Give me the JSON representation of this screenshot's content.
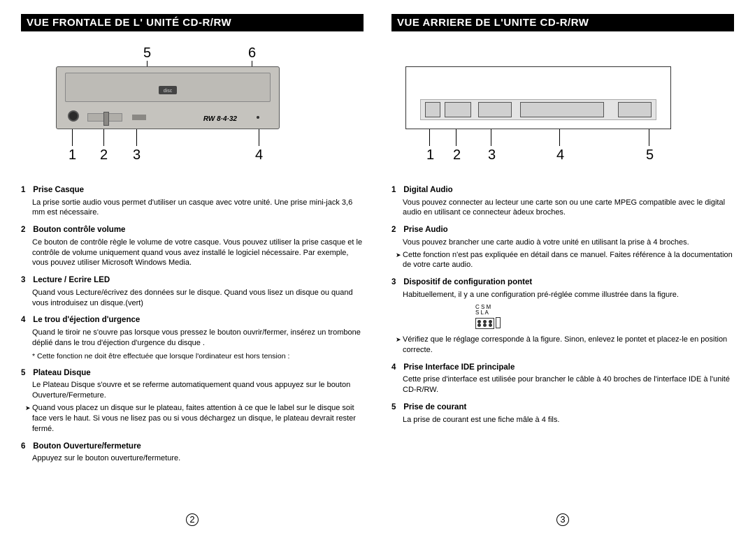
{
  "left": {
    "title": "VUE FRONTALE DE L' UNITÉ CD-R/RW",
    "callouts_top": {
      "n5": "5",
      "n6": "6"
    },
    "callouts_bottom": {
      "n1": "1",
      "n2": "2",
      "n3": "3",
      "n4": "4"
    },
    "drive": {
      "rw_text": "RW 8·4·32",
      "logo_text": "disc"
    },
    "items": [
      {
        "num": "1",
        "title": "Prise Casque",
        "body": "La prise sortie audio vous permet d'utiliser un casque avec votre unité. Une prise mini-jack 3,6 mm est nécessaire."
      },
      {
        "num": "2",
        "title": "Bouton contrôle volume",
        "body": "Ce bouton de contrôle règle le volume de votre casque. Vous pouvez utiliser la prise casque et le contrôle de volume uniquement quand vous avez installé le logiciel nécessaire. Par exemple, vous pouvez utiliser Microsoft Windows Media."
      },
      {
        "num": "3",
        "title": "Lecture / Ecrire LED",
        "body": "Quand vous Lecture/écrivez des données sur le disque.\nQuand vous lisez un disque ou quand vous introduisez un disque.(vert)"
      },
      {
        "num": "4",
        "title": "Le trou d'éjection d'urgence",
        "body": "Quand le tiroir ne s'ouvre pas lorsque vous pressez le bouton ouvrir/fermer, insérez un trombone déplié dans le trou d'éjection d'urgence du disque .",
        "star": "* Cette fonction ne doit être effectuée que lorsque l'ordinateur est hors tension  :"
      },
      {
        "num": "5",
        "title": "Plateau Disque",
        "body": "Le Plateau Disque s'ouvre et se referme automatiquement quand vous appuyez sur le bouton Ouverture/Fermeture.",
        "note": "Quand vous placez un disque sur le plateau, faites attention à ce que le label sur le disque soit face vers le haut. Si vous ne lisez pas ou si vous déchargez un disque, le plateau devrait rester fermé."
      },
      {
        "num": "6",
        "title": "Bouton Ouverture/fermeture",
        "body": "Appuyez sur le bouton ouverture/fermeture."
      }
    ],
    "page": "2"
  },
  "right": {
    "title": "VUE ARRIERE DE L'UNITE CD-R/RW",
    "callouts_bottom": {
      "n1": "1",
      "n2": "2",
      "n3": "3",
      "n4": "4",
      "n5": "5"
    },
    "jumper": {
      "l1": "C S M",
      "l2": "S L A"
    },
    "items": [
      {
        "num": "1",
        "title": "Digital Audio",
        "body": "Vous pouvez connecter au lecteur une carte son ou une carte MPEG compatible avec le digital audio en utilisant ce connecteur àdeux broches."
      },
      {
        "num": "2",
        "title": "Prise Audio",
        "body": "Vous pouvez brancher une carte audio à votre unité en utilisant la prise à 4 broches.",
        "note": "Cette fonction n'est pas expliquée en détail dans ce manuel. Faites référence à la documentation de votre carte audio."
      },
      {
        "num": "3",
        "title": "Dispositif de configuration pontet",
        "body": "Habituellement, il y a une configuration pré-réglée comme illustrée dans la figure.",
        "jumper": true,
        "note": "Vérifiez que le réglage corresponde à la figure. Sinon, enlevez le pontet et placez-le en position correcte."
      },
      {
        "num": "4",
        "title": "Prise Interface IDE principale",
        "body": "Cette prise d'interface est utilisée pour brancher le câble à 40 broches de l'interface IDE à l'unité CD-R/RW."
      },
      {
        "num": "5",
        "title": "Prise de courant",
        "body": "La prise de courant est une fiche mâle à 4 fils."
      }
    ],
    "page": "3"
  },
  "colors": {
    "header_bg": "#000000",
    "header_fg": "#ffffff",
    "drive_fill": "#c5c3be"
  }
}
